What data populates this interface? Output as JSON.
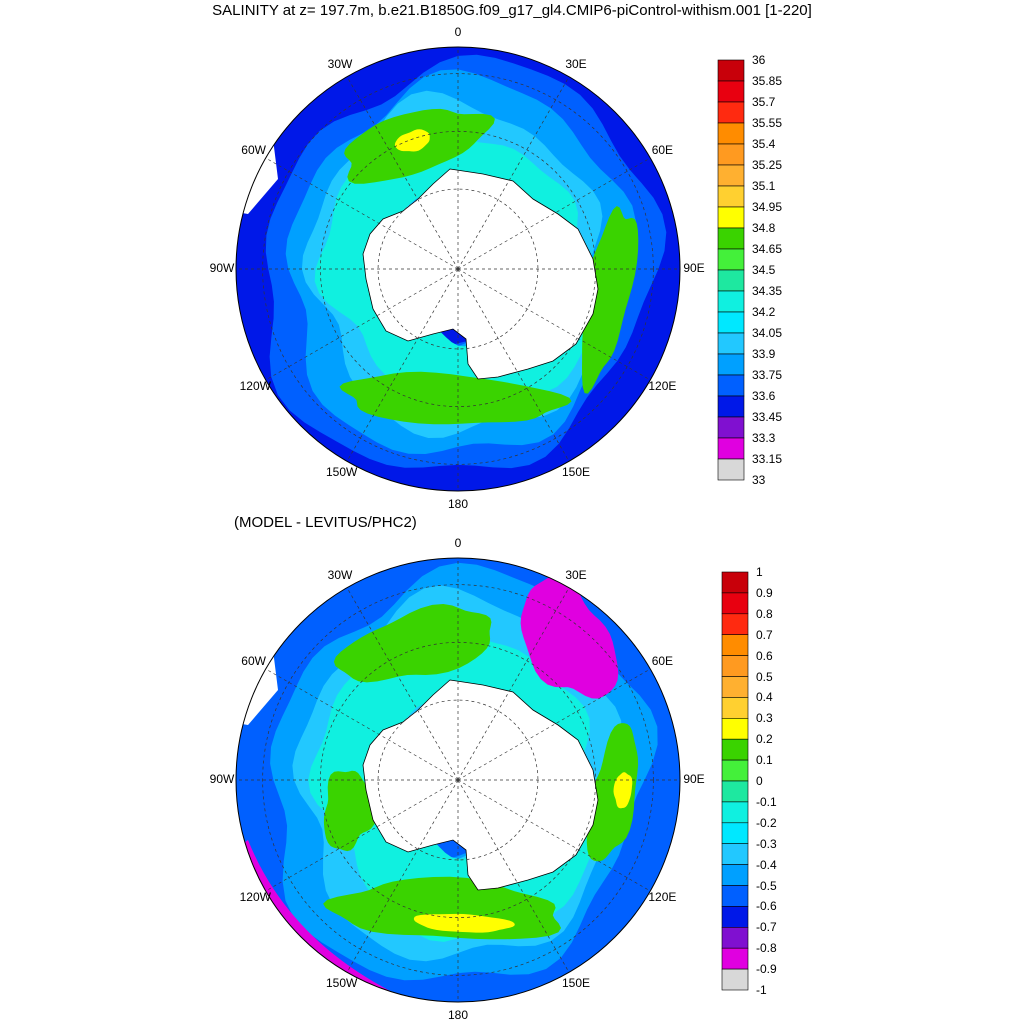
{
  "chart_data": [
    {
      "type": "heatmap",
      "projection": "south polar stereographic",
      "title": "SALINITY at z= 197.7m, b.e21.B1850G.f09_g17_gl4.CMIP6-piControl-withism.001 [1-220]",
      "longitude_labels": [
        "0",
        "30E",
        "60E",
        "90E",
        "120E",
        "150E",
        "180",
        "150W",
        "120W",
        "90W",
        "60W",
        "30W"
      ],
      "colorbar": {
        "levels": [
          "36",
          "35.85",
          "35.7",
          "35.55",
          "35.4",
          "35.25",
          "35.1",
          "34.95",
          "34.8",
          "34.65",
          "34.5",
          "34.35",
          "34.2",
          "34.05",
          "33.9",
          "33.75",
          "33.6",
          "33.45",
          "33.3",
          "33.15",
          "33"
        ],
        "colors": [
          "#c8000a",
          "#e80010",
          "#ff2a10",
          "#ff8c00",
          "#ff9a20",
          "#ffb030",
          "#ffd030",
          "#ffff00",
          "#3ad300",
          "#44f03a",
          "#1ee8a0",
          "#10f0e0",
          "#00e8ff",
          "#22c8ff",
          "#00a0ff",
          "#0060ff",
          "#0018e8",
          "#8010d0",
          "#e000e0",
          "#d8d8d8",
          "#707070"
        ]
      },
      "regions": [
        {
          "name": "ocean-background",
          "color": "#0018e8"
        },
        {
          "name": "outer-band",
          "color": "#0060ff"
        },
        {
          "name": "mid-band",
          "color": "#00a0ff"
        },
        {
          "name": "inner-band",
          "color": "#22c8ff"
        },
        {
          "name": "high-band",
          "color": "#10f0e0"
        },
        {
          "name": "green-core",
          "color": "#3ad300"
        },
        {
          "name": "yellow-core",
          "color": "#ffff00"
        },
        {
          "name": "land",
          "color": "#ffffff"
        }
      ]
    },
    {
      "type": "heatmap",
      "projection": "south polar stereographic",
      "title": "(MODEL - LEVITUS/PHC2)",
      "longitude_labels": [
        "0",
        "30E",
        "60E",
        "90E",
        "120E",
        "150E",
        "180",
        "150W",
        "120W",
        "90W",
        "60W",
        "30W"
      ],
      "colorbar": {
        "levels": [
          "1",
          "0.9",
          "0.8",
          "0.7",
          "0.6",
          "0.5",
          "0.4",
          "0.3",
          "0.2",
          "0.1",
          "0",
          "-0.1",
          "-0.2",
          "-0.3",
          "-0.4",
          "-0.5",
          "-0.6",
          "-0.7",
          "-0.8",
          "-0.9",
          "-1"
        ],
        "colors": [
          "#c8000a",
          "#e80010",
          "#ff2a10",
          "#ff8c00",
          "#ff9a20",
          "#ffb030",
          "#ffd030",
          "#ffff00",
          "#3ad300",
          "#44f03a",
          "#1ee8a0",
          "#10f0e0",
          "#00e8ff",
          "#22c8ff",
          "#00a0ff",
          "#0060ff",
          "#0018e8",
          "#8010d0",
          "#e000e0",
          "#d8d8d8",
          "#707070"
        ]
      },
      "regions": [
        {
          "name": "background",
          "color": "#0060ff"
        },
        {
          "name": "outer-band",
          "color": "#00a0ff"
        },
        {
          "name": "mid-band",
          "color": "#22c8ff"
        },
        {
          "name": "inner-band",
          "color": "#10f0e0"
        },
        {
          "name": "green-core",
          "color": "#3ad300"
        },
        {
          "name": "yellow-core",
          "color": "#ffff00"
        },
        {
          "name": "negative-anomaly",
          "color": "#e000e0"
        },
        {
          "name": "land",
          "color": "#ffffff"
        }
      ]
    }
  ]
}
